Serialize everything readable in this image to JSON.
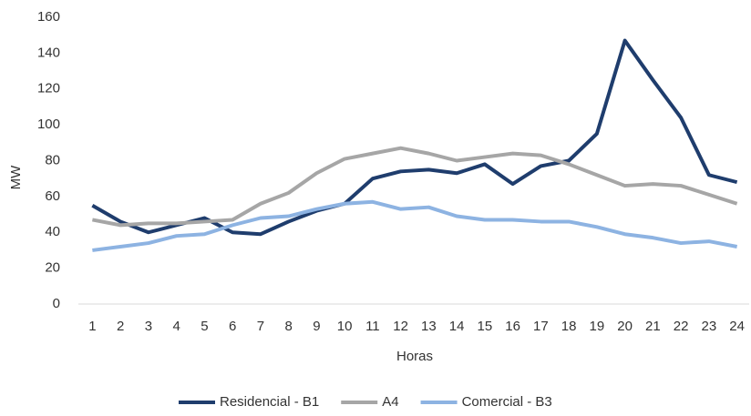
{
  "chart_data": {
    "type": "line",
    "x_label": "Horas",
    "y_label": "MW",
    "categories": [
      "1",
      "2",
      "3",
      "4",
      "5",
      "6",
      "7",
      "8",
      "9",
      "10",
      "11",
      "12",
      "13",
      "14",
      "15",
      "16",
      "17",
      "18",
      "19",
      "20",
      "21",
      "22",
      "23",
      "24"
    ],
    "series": [
      {
        "name": "Residencial - B1",
        "color": "#1f3d6d",
        "values": [
          55,
          46,
          40,
          44,
          48,
          40,
          39,
          46,
          52,
          56,
          70,
          74,
          75,
          73,
          78,
          67,
          77,
          80,
          95,
          147,
          125,
          104,
          72,
          68
        ]
      },
      {
        "name": "A4",
        "color": "#a6a6a6",
        "values": [
          47,
          44,
          45,
          45,
          46,
          47,
          56,
          62,
          73,
          81,
          84,
          87,
          84,
          80,
          82,
          84,
          83,
          78,
          72,
          66,
          67,
          66,
          61,
          56
        ]
      },
      {
        "name": "Comercial - B3",
        "color": "#8db3e2",
        "values": [
          30,
          32,
          34,
          38,
          39,
          44,
          48,
          49,
          53,
          56,
          57,
          53,
          54,
          49,
          47,
          47,
          46,
          46,
          43,
          39,
          37,
          34,
          35,
          32
        ]
      }
    ],
    "ylim": [
      0,
      160
    ],
    "yticks": [
      0,
      20,
      40,
      60,
      80,
      100,
      120,
      140,
      160
    ],
    "legend": "bottom"
  }
}
